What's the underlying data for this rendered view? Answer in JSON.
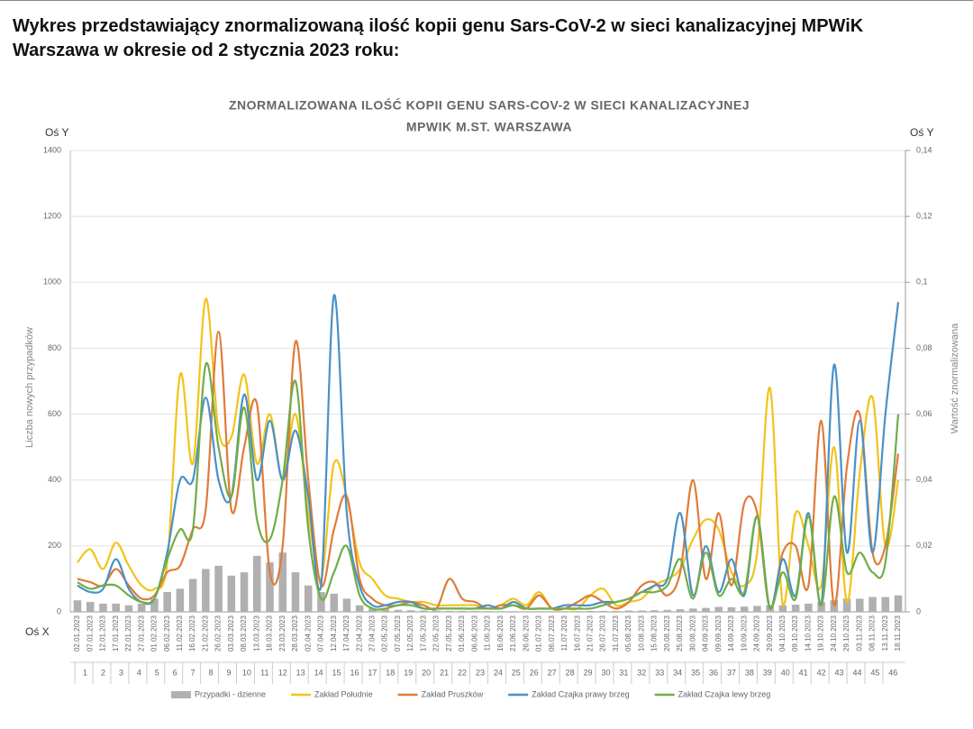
{
  "heading": "Wykres przedstawiający znormalizowaną ilość kopii genu Sars-CoV-2 w sieci kanalizacyjnej MPWiK Warszawa w okresie od 2 stycznia 2023 roku:",
  "chart_data": {
    "type": "line",
    "title": [
      "ZNORMALIZOWANA ILOŚĆ KOPII GENU SARS-COV-2 W SIECI KANALIZACYJNEJ",
      "MPWIK M.ST. WARSZAWA"
    ],
    "y_axis_name": "Oś Y",
    "y2_axis_name": "Oś Y",
    "x_axis_name": "Oś X",
    "y_label": "Liczba nowych przypadków",
    "y2_label": "Wartość znormalizowana",
    "x": [
      "02.01.2023",
      "07.01.2023",
      "12.01.2023",
      "17.01.2023",
      "22.01.2023",
      "27.01.2023",
      "01.02.2023",
      "06.02.2023",
      "11.02.2023",
      "16.02.2023",
      "21.02.2023",
      "26.02.2023",
      "03.03.2023",
      "08.03.2023",
      "13.03.2023",
      "18.03.2023",
      "23.03.2023",
      "28.03.2023",
      "02.04.2023",
      "07.04.2023",
      "12.04.2023",
      "17.04.2023",
      "22.04.2023",
      "27.04.2023",
      "02.05.2023",
      "07.05.2023",
      "12.05.2023",
      "17.05.2023",
      "22.05.2023",
      "27.05.2023",
      "01.06.2023",
      "06.06.2023",
      "11.06.2023",
      "16.06.2023",
      "21.06.2023",
      "26.06.2023",
      "01.07.2023",
      "06.07.2023",
      "11.07.2023",
      "16.07.2023",
      "21.07.2023",
      "26.07.2023",
      "31.07.2023",
      "05.08.2023",
      "10.08.2023",
      "15.08.2023",
      "20.08.2023",
      "25.08.2023",
      "30.08.2023",
      "04.09.2023",
      "09.09.2023",
      "14.09.2023",
      "19.09.2023",
      "24.09.2023",
      "29.09.2023",
      "04.10.2023",
      "09.10.2023",
      "14.10.2023",
      "19.10.2023",
      "24.10.2023",
      "29.10.2023",
      "03.11.2023",
      "08.11.2023",
      "13.11.2023",
      "18.11.2023"
    ],
    "weeks": [
      1,
      2,
      3,
      4,
      5,
      6,
      7,
      8,
      9,
      10,
      11,
      12,
      13,
      14,
      15,
      16,
      17,
      18,
      19,
      20,
      21,
      22,
      23,
      24,
      25,
      26,
      27,
      28,
      29,
      30,
      31,
      32,
      33,
      34,
      35,
      36,
      37,
      38,
      39,
      40,
      41,
      42,
      43,
      44,
      45,
      46
    ],
    "ylim": [
      0,
      1400
    ],
    "yticks": [
      0,
      200,
      400,
      600,
      800,
      1000,
      1200,
      1400
    ],
    "y2lim": [
      0,
      0.14
    ],
    "y2ticks": [
      0,
      {
        "value": 0.02,
        "label": "0,02"
      },
      {
        "value": 0.04,
        "label": "0,04"
      },
      {
        "value": 0.06,
        "label": "0,06"
      },
      {
        "value": 0.08,
        "label": "0,08"
      },
      {
        "value": 0.1,
        "label": "0,1"
      },
      {
        "value": 0.12,
        "label": "0,12"
      },
      {
        "value": 0.14,
        "label": "0,14"
      }
    ],
    "grid": true,
    "legend": "bottom",
    "series": [
      {
        "name": "Przypadki - dzienne",
        "type": "bar",
        "axis": "y",
        "color": "#b0b0b0",
        "values": [
          35,
          30,
          25,
          25,
          20,
          25,
          40,
          60,
          70,
          100,
          130,
          140,
          110,
          120,
          170,
          150,
          180,
          120,
          80,
          60,
          55,
          40,
          20,
          10,
          8,
          6,
          5,
          4,
          4,
          3,
          3,
          3,
          2,
          2,
          2,
          2,
          2,
          2,
          2,
          2,
          3,
          3,
          3,
          4,
          4,
          5,
          6,
          8,
          10,
          12,
          15,
          14,
          16,
          18,
          20,
          20,
          22,
          25,
          30,
          35,
          40,
          40,
          45,
          45,
          50
        ]
      },
      {
        "name": "Zakład Południe",
        "axis": "y2",
        "color": "#f2c31a",
        "values": [
          0.015,
          0.019,
          0.013,
          0.021,
          0.014,
          0.008,
          0.007,
          0.015,
          0.072,
          0.045,
          0.095,
          0.055,
          0.053,
          0.072,
          0.045,
          0.06,
          0.04,
          0.06,
          0.03,
          0.01,
          0.045,
          0.035,
          0.015,
          0.01,
          0.005,
          0.004,
          0.003,
          0.003,
          0.002,
          0.002,
          0.002,
          0.002,
          0.001,
          0.002,
          0.004,
          0.002,
          0.006,
          0.001,
          0.001,
          0.001,
          0.005,
          0.007,
          0.002,
          0.003,
          0.004,
          0.008,
          0.01,
          0.013,
          0.022,
          0.028,
          0.025,
          0.012,
          0.008,
          0.018,
          0.068,
          0.002,
          0.03,
          0.02,
          0.008,
          0.05,
          0.003,
          0.042,
          0.065,
          0.02,
          0.04
        ]
      },
      {
        "name": "Zakład Pruszków",
        "axis": "y2",
        "color": "#e07b39",
        "values": [
          0.01,
          0.009,
          0.008,
          0.013,
          0.008,
          0.004,
          0.005,
          0.012,
          0.014,
          0.025,
          0.031,
          0.085,
          0.031,
          0.05,
          0.063,
          0.012,
          0.02,
          0.082,
          0.04,
          0.008,
          0.025,
          0.035,
          0.01,
          0.004,
          0.002,
          0.002,
          0.003,
          0.002,
          0.001,
          0.01,
          0.004,
          0.003,
          0.001,
          0.002,
          0.002,
          0.001,
          0.005,
          0.001,
          0.001,
          0.003,
          0.005,
          0.003,
          0.001,
          0.003,
          0.008,
          0.009,
          0.005,
          0.012,
          0.04,
          0.01,
          0.03,
          0.008,
          0.033,
          0.03,
          0.001,
          0.018,
          0.02,
          0.008,
          0.058,
          0.002,
          0.044,
          0.06,
          0.018,
          0.02,
          0.048
        ]
      },
      {
        "name": "Zakład Czajka prawy brzeg",
        "axis": "y2",
        "color": "#4a90c8",
        "values": [
          0.008,
          0.006,
          0.007,
          0.016,
          0.007,
          0.003,
          0.004,
          0.018,
          0.04,
          0.04,
          0.065,
          0.04,
          0.035,
          0.066,
          0.04,
          0.058,
          0.04,
          0.055,
          0.035,
          0.008,
          0.096,
          0.03,
          0.008,
          0.002,
          0.002,
          0.003,
          0.003,
          0.001,
          0.001,
          0.001,
          0.001,
          0.001,
          0.002,
          0.001,
          0.003,
          0.001,
          0.001,
          0.001,
          0.002,
          0.002,
          0.002,
          0.003,
          0.003,
          0.004,
          0.006,
          0.008,
          0.01,
          0.03,
          0.005,
          0.02,
          0.006,
          0.016,
          0.005,
          0.029,
          0.001,
          0.016,
          0.005,
          0.03,
          0.002,
          0.075,
          0.018,
          0.058,
          0.018,
          0.06,
          0.094
        ]
      },
      {
        "name": "Zakład Czajka lewy brzeg",
        "axis": "y2",
        "color": "#70ad47",
        "values": [
          0.009,
          0.007,
          0.008,
          0.008,
          0.005,
          0.003,
          0.004,
          0.016,
          0.025,
          0.025,
          0.075,
          0.05,
          0.035,
          0.062,
          0.028,
          0.022,
          0.04,
          0.07,
          0.025,
          0.004,
          0.012,
          0.02,
          0.005,
          0.001,
          0.001,
          0.002,
          0.002,
          0.001,
          0.001,
          0.001,
          0.001,
          0.001,
          0.001,
          0.001,
          0.002,
          0.001,
          0.001,
          0.001,
          0.001,
          0.001,
          0.001,
          0.002,
          0.003,
          0.004,
          0.006,
          0.006,
          0.008,
          0.016,
          0.004,
          0.018,
          0.005,
          0.01,
          0.006,
          0.029,
          0.001,
          0.012,
          0.004,
          0.029,
          0.002,
          0.035,
          0.012,
          0.018,
          0.012,
          0.015,
          0.06
        ]
      }
    ]
  }
}
